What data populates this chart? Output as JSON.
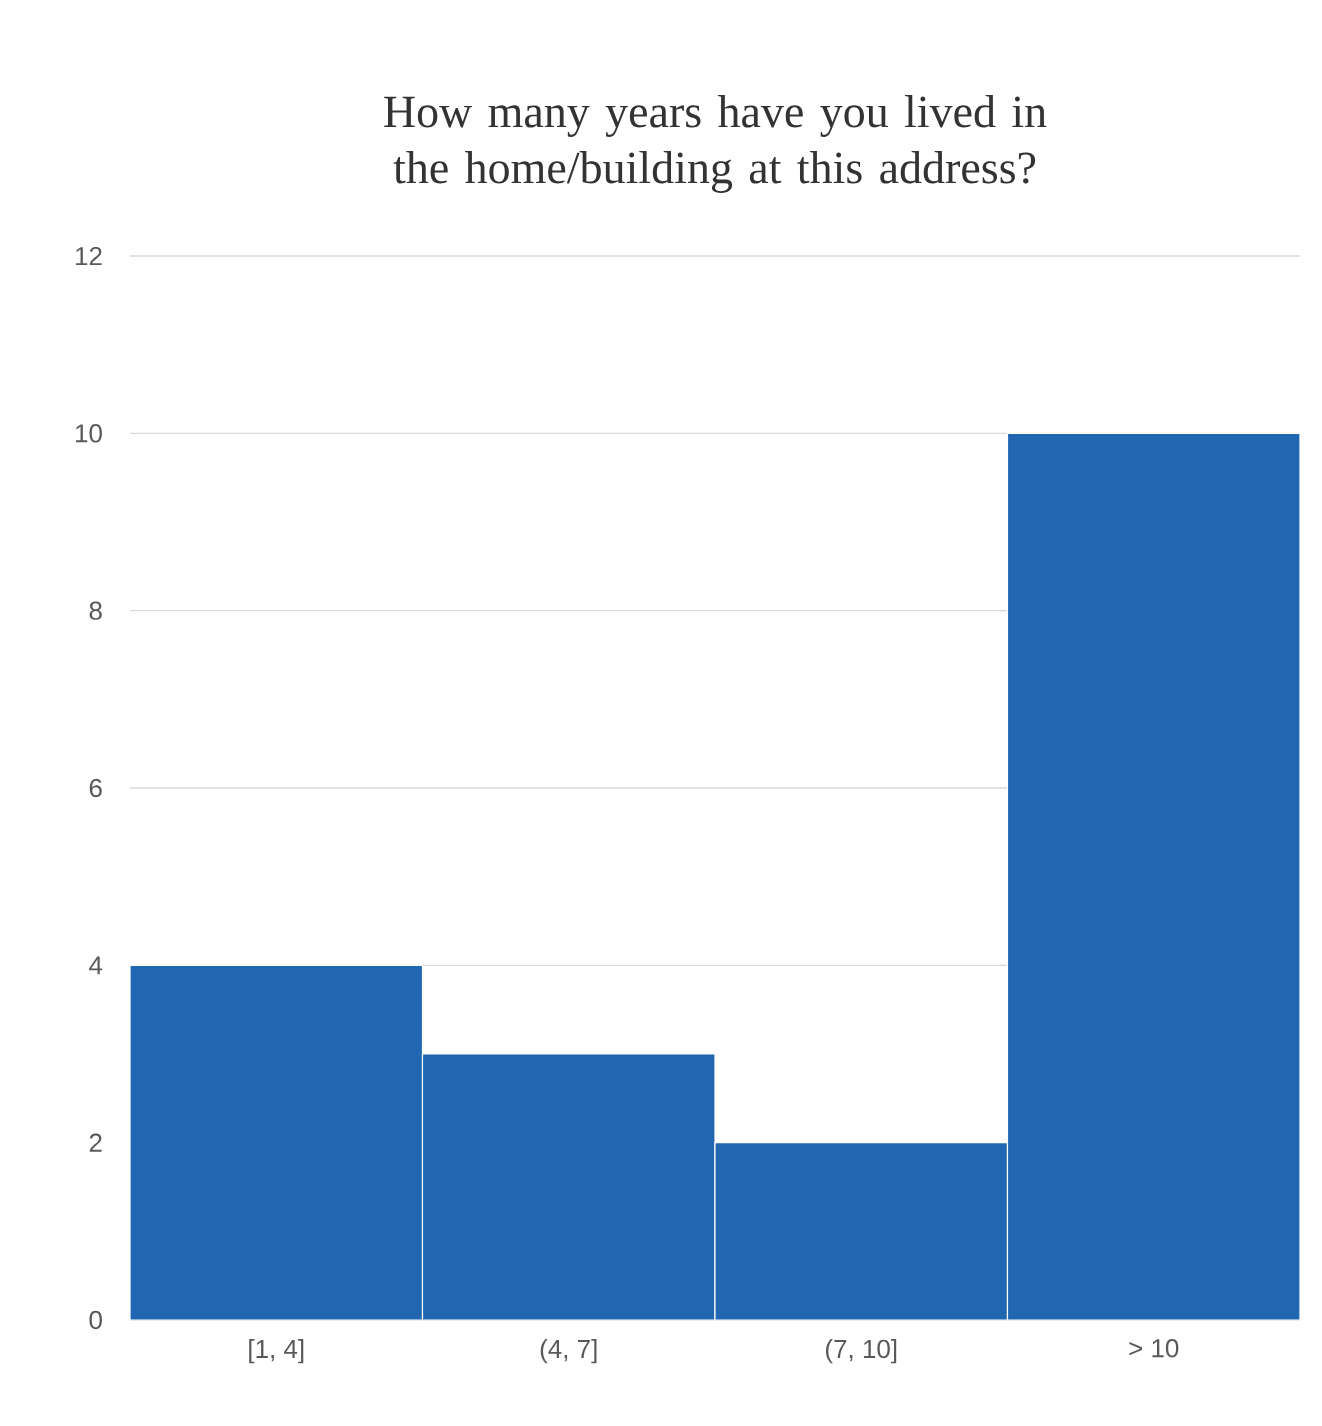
{
  "chart_data": {
    "type": "bar",
    "title": "How many years have you lived in the home/building at this address?",
    "categories": [
      "[1, 4]",
      "(4, 7]",
      "(7, 10]",
      "> 10"
    ],
    "values": [
      4,
      3,
      2,
      10
    ],
    "color": "#2166b1",
    "ylim": [
      0,
      12
    ],
    "yticks": [
      0,
      2,
      4,
      6,
      8,
      10,
      12
    ],
    "grid": "y"
  }
}
